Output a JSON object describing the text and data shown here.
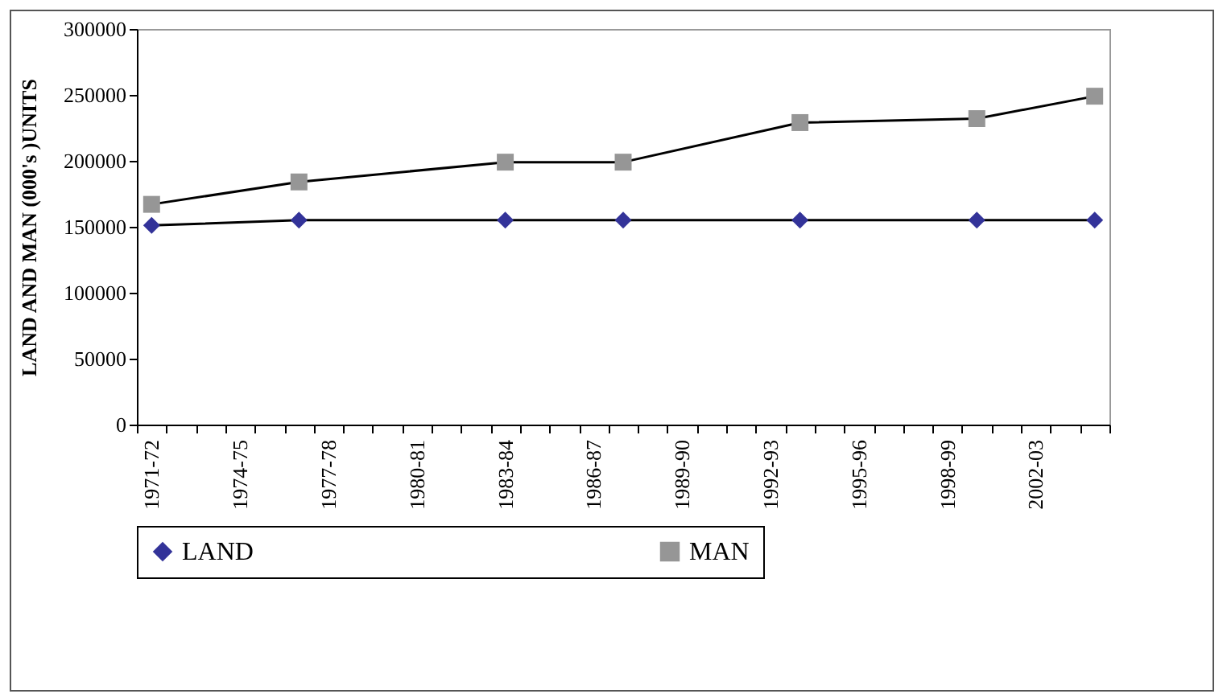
{
  "chart_data": {
    "type": "line",
    "ylabel": "LAND AND MAN (000's )UNITS",
    "categories": [
      "1971-72",
      null,
      null,
      "1974-75",
      null,
      null,
      "1977-78",
      null,
      null,
      "1980-81",
      null,
      null,
      "1983-84",
      null,
      null,
      "1986-87",
      null,
      null,
      "1989-90",
      null,
      null,
      "1992-93",
      null,
      null,
      "1995-96",
      null,
      null,
      "1998-99",
      null,
      null,
      "2002-03",
      null,
      null
    ],
    "series": [
      {
        "name": "LAND",
        "color": "#333399",
        "marker": "diamond",
        "values": [
          151000,
          null,
          null,
          null,
          null,
          155000,
          null,
          null,
          null,
          null,
          null,
          null,
          155000,
          null,
          null,
          null,
          155000,
          null,
          null,
          null,
          null,
          null,
          155000,
          null,
          null,
          null,
          null,
          null,
          155000,
          null,
          null,
          null,
          155000
        ]
      },
      {
        "name": "MAN",
        "color": "#969696",
        "marker": "square",
        "values": [
          167000,
          null,
          null,
          null,
          null,
          184000,
          null,
          null,
          null,
          null,
          null,
          null,
          199000,
          null,
          null,
          null,
          199000,
          null,
          null,
          null,
          null,
          null,
          229000,
          null,
          null,
          null,
          null,
          null,
          232000,
          null,
          null,
          null,
          249000
        ]
      }
    ],
    "ylim": [
      0,
      300000
    ],
    "yticks": [
      0,
      50000,
      100000,
      150000,
      200000,
      250000,
      300000
    ],
    "grid": false,
    "legend": "bottom"
  }
}
